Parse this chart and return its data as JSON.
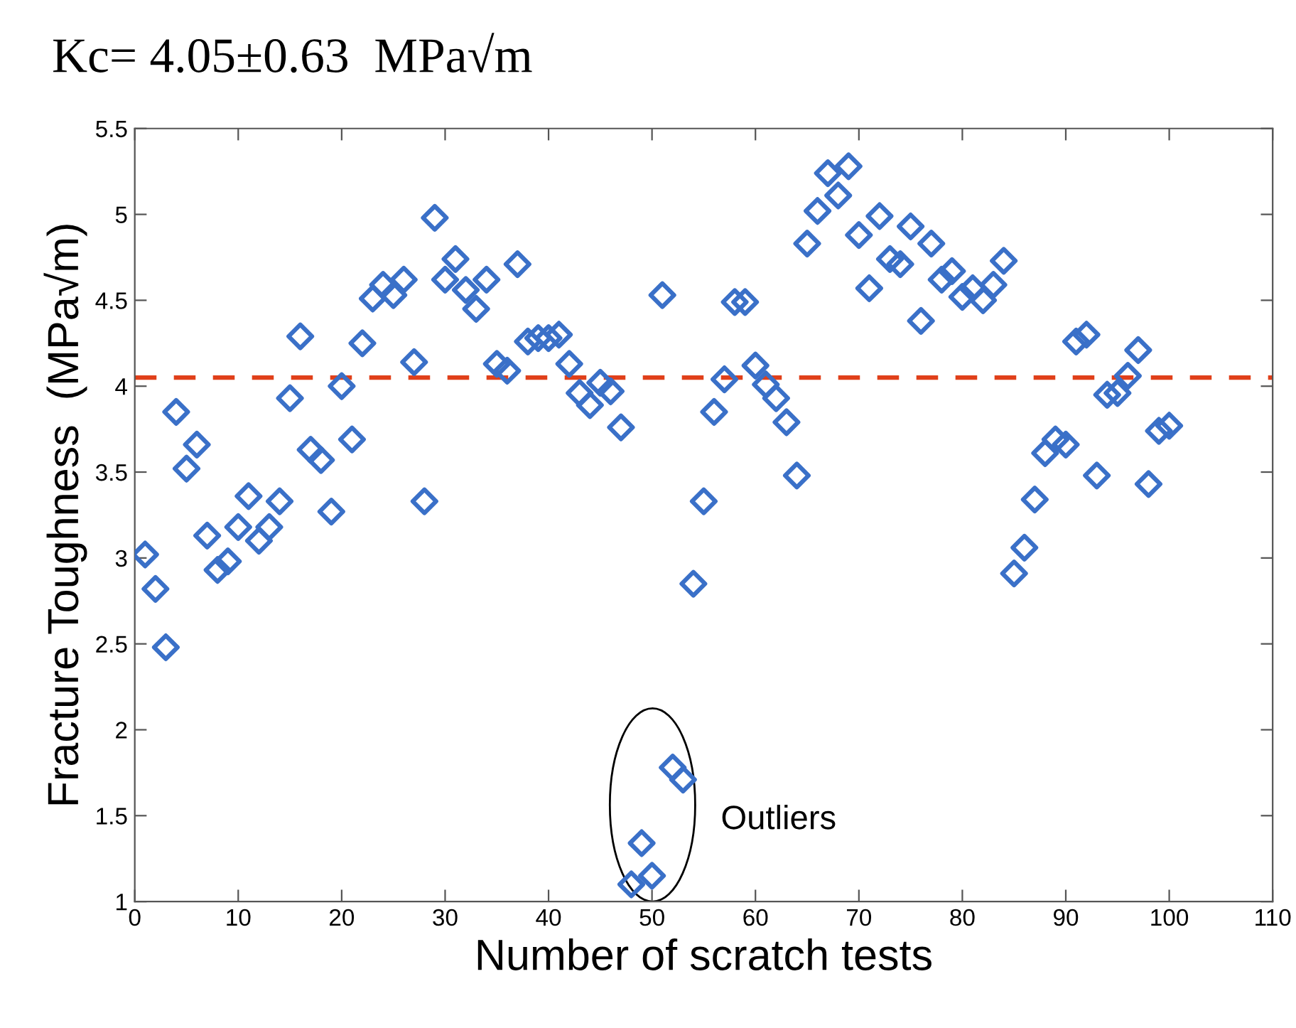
{
  "chart_data": {
    "type": "scatter",
    "title": "Kc= 4.05±0.63  MPa√m",
    "xlabel": "Number of scratch tests",
    "ylabel": "Fracture Toughness  (MPa√m)",
    "x": [
      1,
      2,
      3,
      4,
      5,
      6,
      7,
      8,
      9,
      10,
      11,
      12,
      13,
      14,
      15,
      16,
      17,
      18,
      19,
      20,
      21,
      22,
      23,
      24,
      25,
      26,
      27,
      28,
      29,
      30,
      31,
      32,
      33,
      34,
      35,
      36,
      37,
      38,
      39,
      40,
      41,
      42,
      43,
      44,
      45,
      46,
      47,
      48,
      49,
      50,
      51,
      52,
      53,
      54,
      55,
      56,
      57,
      58,
      59,
      60,
      61,
      62,
      63,
      64,
      65,
      66,
      67,
      68,
      69,
      70,
      71,
      72,
      73,
      74,
      75,
      76,
      77,
      78,
      79,
      80,
      81,
      82,
      83,
      84,
      85,
      86,
      87,
      88,
      89,
      90,
      91,
      92,
      93,
      94,
      95,
      96,
      97,
      98,
      99,
      100
    ],
    "series": [
      {
        "color": "#3a70c8",
        "values": [
          3.02,
          2.82,
          2.48,
          3.85,
          3.52,
          3.66,
          3.13,
          2.93,
          2.98,
          3.18,
          3.36,
          3.1,
          3.18,
          3.33,
          3.93,
          4.29,
          3.63,
          3.57,
          3.27,
          4.0,
          3.69,
          4.25,
          4.51,
          4.59,
          4.53,
          4.62,
          4.14,
          3.33,
          4.98,
          4.62,
          4.74,
          4.56,
          4.45,
          4.62,
          4.13,
          4.09,
          4.71,
          4.26,
          4.28,
          4.28,
          4.3,
          4.13,
          3.96,
          3.89,
          4.02,
          3.97,
          3.76,
          1.1,
          1.34,
          1.15,
          4.53,
          1.78,
          1.71,
          2.85,
          3.33,
          3.85,
          4.04,
          4.49,
          4.49,
          4.12,
          4.01,
          3.93,
          3.79,
          3.48,
          4.83,
          5.02,
          5.24,
          5.11,
          5.28,
          4.88,
          4.57,
          4.99,
          4.74,
          4.71,
          4.93,
          4.38,
          4.83,
          4.62,
          4.67,
          4.52,
          4.57,
          4.5,
          4.59,
          4.73,
          2.91,
          3.06,
          3.34,
          3.61,
          3.69,
          3.66,
          4.26,
          4.3,
          3.48,
          3.95,
          3.96,
          4.06,
          4.21,
          3.43,
          3.74,
          3.77
        ]
      }
    ],
    "marker": "diamond",
    "xlim": [
      0,
      110
    ],
    "xticks": [
      0,
      10,
      20,
      30,
      40,
      50,
      60,
      70,
      80,
      90,
      100,
      110
    ],
    "ylim": [
      1,
      5.5
    ],
    "yticks": [
      1,
      1.5,
      2,
      2.5,
      3,
      3.5,
      4,
      4.5,
      5,
      5.5
    ],
    "ref_lines": [
      {
        "axis": "y",
        "value": 4.05,
        "color": "#e0401a",
        "line_style": "dashed"
      }
    ],
    "annotations": [
      "Outliers"
    ],
    "grid": false,
    "legend": false
  }
}
